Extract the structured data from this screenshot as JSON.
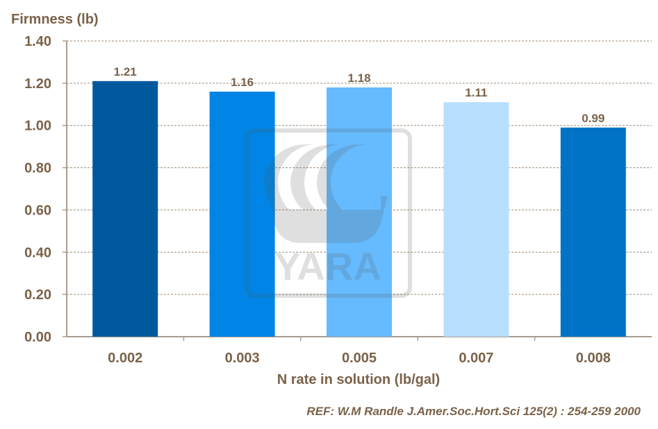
{
  "chart_data": {
    "type": "bar",
    "title": "",
    "ylabel": "Firmness (lb)",
    "xlabel": "N rate in solution (lb/gal)",
    "categories": [
      "0.002",
      "0.003",
      "0.005",
      "0.007",
      "0.008"
    ],
    "values": [
      1.21,
      1.16,
      1.18,
      1.11,
      0.99
    ],
    "value_labels": [
      "1.21",
      "1.16",
      "1.18",
      "1.11",
      "0.99"
    ],
    "colors": [
      "#00599c",
      "#0085e6",
      "#66bbff",
      "#b8dffd",
      "#0073c6"
    ],
    "ylim": [
      0,
      1.4
    ],
    "yticks": [
      "0.00",
      "0.20",
      "0.40",
      "0.60",
      "0.80",
      "1.00",
      "1.20",
      "1.40"
    ],
    "grid": true,
    "legend": "none"
  },
  "reference": "REF: W.M Randle  J.Amer.Soc.Hort.Sci 125(2) : 254-259 2000",
  "watermark": "YARA"
}
